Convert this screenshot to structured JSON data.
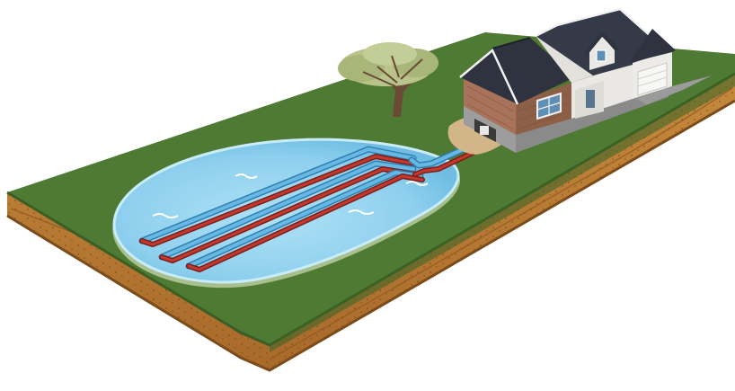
{
  "diagram": {
    "subject": "pond-loop-geothermal-system",
    "components": [
      {
        "id": "ground-slab",
        "kind": "terrain"
      },
      {
        "id": "pond",
        "kind": "water-body"
      },
      {
        "id": "pipe-loops",
        "kind": "heat-exchanger",
        "loop_count": 3
      },
      {
        "id": "supply-line",
        "kind": "pipe"
      },
      {
        "id": "house",
        "kind": "building"
      },
      {
        "id": "tree",
        "kind": "vegetation"
      }
    ],
    "colors": {
      "grass": "#4e7a33",
      "grass_dark": "#3f6628",
      "soil": "#b9792f",
      "soil_dark": "#8a5a22",
      "water": "#8fd0ee",
      "water_light": "#c7ecfa",
      "pipe_hot": "#b2332a",
      "pipe_cold": "#4fa6d6",
      "brick": "#9a6a4e",
      "roof": "#2f3340",
      "siding": "#e9e8e4"
    }
  }
}
